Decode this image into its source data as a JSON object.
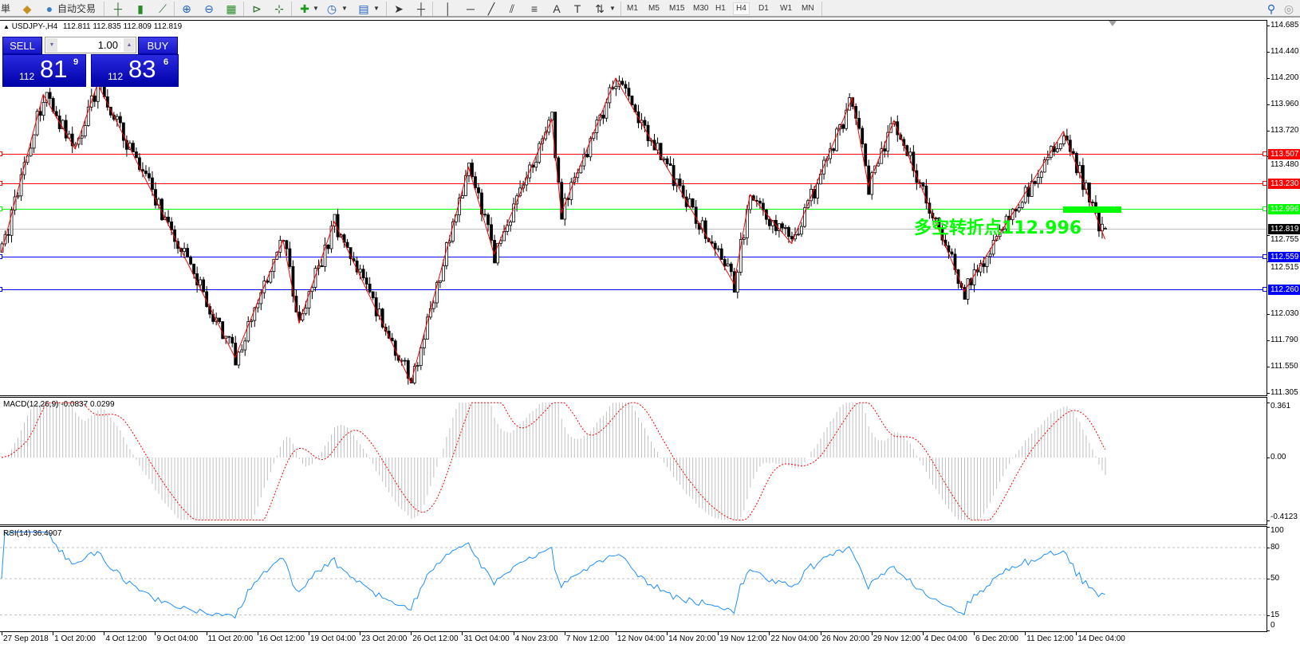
{
  "toolbar": {
    "order_label": "単",
    "autotrade_label": "自动交易",
    "icons": [
      "gold-bars-icon",
      "autotrade-icon",
      "bar-chart-icon",
      "candlestick-icon",
      "line-chart-icon",
      "zoom-in-icon",
      "zoom-out-icon",
      "tile-windows-icon",
      "auto-scroll-icon",
      "chart-shift-icon",
      "indicators-icon",
      "periods-clock-icon",
      "templates-icon",
      "cursor-icon",
      "crosshair-icon",
      "vertical-line-icon",
      "horizontal-line-icon",
      "trendline-icon",
      "fibo-channel-icon",
      "fibo-retracement-icon",
      "text-icon",
      "text-label-icon",
      "arrows-icon",
      "search-icon",
      "community-icon"
    ],
    "timeframes": [
      "M1",
      "M5",
      "M15",
      "M30",
      "H1",
      "H4",
      "D1",
      "W1",
      "MN"
    ],
    "active_timeframe": "H4"
  },
  "chart_header": {
    "symbol": "USDJPY-,H4",
    "ohlc": "112.811 112.835 112.809 112.819"
  },
  "trade_panel": {
    "sell_label": "SELL",
    "buy_label": "BUY",
    "lot": "1.00",
    "sell_prefix": "112",
    "sell_big": "81",
    "sell_sup": "9",
    "buy_prefix": "112",
    "buy_big": "83",
    "buy_sup": "6"
  },
  "price_axis": [
    "114.685",
    "114.440",
    "114.200",
    "113.960",
    "113.720",
    "113.480",
    "112.755",
    "112.515",
    "112.030",
    "111.790",
    "111.550",
    "111.305"
  ],
  "levels": [
    {
      "price": "113.507",
      "color": "#ff0000"
    },
    {
      "price": "113.230",
      "color": "#ff0000"
    },
    {
      "price": "112.996",
      "color": "#00ff00"
    },
    {
      "price": "112.819",
      "color": "#000000",
      "line_color": "#c0c0c0"
    },
    {
      "price": "112.559",
      "color": "#0000ff"
    },
    {
      "price": "112.260",
      "color": "#0000ff"
    }
  ],
  "annotation": {
    "text": "多空转折点112.996",
    "color": "#00ff00"
  },
  "macd": {
    "header": "MACD(12,26,9) -0.0837 0.0299",
    "axis": [
      "0.361",
      "0.00",
      "-0.4123"
    ],
    "hist_color": "#c0c0c0",
    "signal_color": "#ff0000"
  },
  "rsi": {
    "header": "RSI(14) 36.4907",
    "axis": [
      "100",
      "80",
      "50",
      "15",
      "0"
    ],
    "color": "#1e90ff"
  },
  "time_axis": [
    "27 Sep 2018",
    "1 Oct 20:00",
    "4 Oct 12:00",
    "9 Oct 04:00",
    "11 Oct 20:00",
    "16 Oct 12:00",
    "19 Oct 04:00",
    "23 Oct 20:00",
    "26 Oct 12:00",
    "31 Oct 04:00",
    "4 Nov 23:00",
    "7 Nov 12:00",
    "12 Nov 04:00",
    "14 Nov 20:00",
    "19 Nov 12:00",
    "22 Nov 04:00",
    "26 Nov 20:00",
    "29 Nov 12:00",
    "4 Dec 04:00",
    "6 Dec 20:00",
    "11 Dec 12:00",
    "14 Dec 04:00"
  ],
  "chart_data": {
    "type": "candlestick",
    "symbol": "USDJPY-",
    "timeframe": "H4",
    "ylim": [
      111.305,
      114.685
    ],
    "last_bar": {
      "open": 112.811,
      "high": 112.835,
      "low": 112.809,
      "close": 112.819
    },
    "zigzag_color": "#ff0000",
    "zigzag": [
      [
        0,
        112.6
      ],
      [
        13,
        114.05
      ],
      [
        23,
        113.55
      ],
      [
        30,
        114.15
      ],
      [
        73,
        111.63
      ],
      [
        88,
        112.71
      ],
      [
        93,
        111.95
      ],
      [
        104,
        112.88
      ],
      [
        128,
        111.4
      ],
      [
        146,
        113.38
      ],
      [
        154,
        112.58
      ],
      [
        172,
        113.82
      ],
      [
        175,
        112.96
      ],
      [
        192,
        114.2
      ],
      [
        229,
        112.31
      ],
      [
        234,
        113.13
      ],
      [
        247,
        112.68
      ],
      [
        266,
        114.02
      ],
      [
        271,
        113.21
      ],
      [
        279,
        113.81
      ],
      [
        301,
        112.24
      ],
      [
        332,
        113.71
      ],
      [
        345,
        112.72
      ]
    ]
  }
}
